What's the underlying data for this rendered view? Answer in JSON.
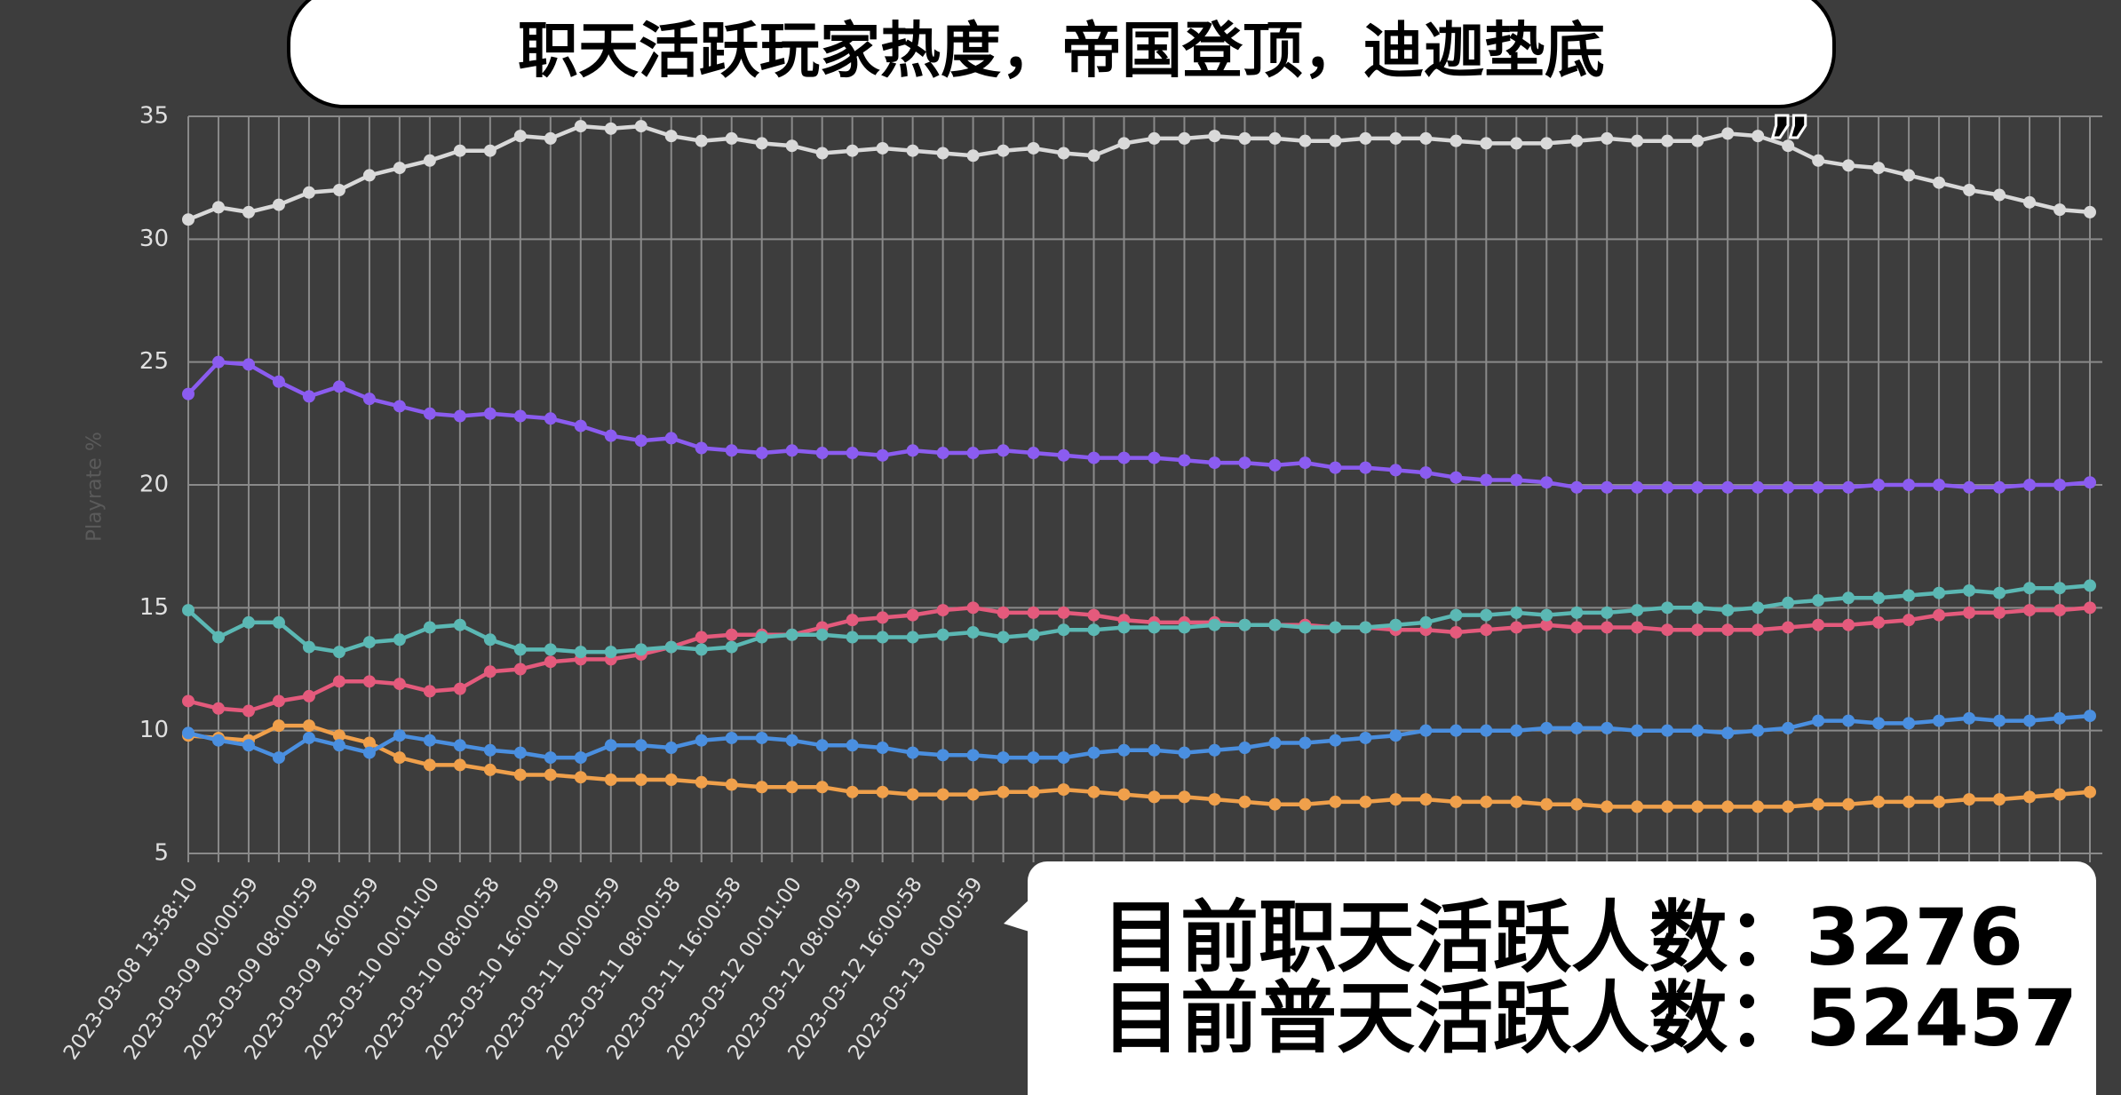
{
  "chart_data": {
    "type": "line",
    "title": "职天活跃玩家热度，帝国登顶，迪迦垫底",
    "quote_open": "“",
    "quote_close": "„",
    "y_label": "Playrate %",
    "categories": [
      "2023-03-08 13:58:10",
      null,
      "2023-03-09 00:00:59",
      null,
      "2023-03-09 08:00:59",
      null,
      "2023-03-09 16:00:59",
      null,
      "2023-03-10 00:01:00",
      null,
      "2023-03-10 08:00:58",
      null,
      "2023-03-10 16:00:59",
      null,
      "2023-03-11 00:00:59",
      null,
      "2023-03-11 08:00:58",
      null,
      "2023-03-11 16:00:58",
      null,
      "2023-03-12 00:01:00",
      null,
      "2023-03-12 08:00:59",
      null,
      "2023-03-12 16:00:58",
      null,
      "2023-03-13 00:00:59",
      null,
      null,
      null,
      null,
      null,
      null,
      null,
      null,
      null,
      null,
      null,
      null,
      null,
      null,
      null,
      null,
      null,
      null,
      null,
      null,
      null,
      null,
      null,
      null,
      null,
      null,
      null,
      null,
      null,
      null,
      null,
      null,
      null,
      null,
      null,
      null,
      null
    ],
    "series": [
      {
        "color": "#d9d9d9",
        "values": [
          30.8,
          31.3,
          31.1,
          31.4,
          31.9,
          32.0,
          32.6,
          32.9,
          33.2,
          33.6,
          33.6,
          34.2,
          34.1,
          34.6,
          34.5,
          34.6,
          34.2,
          34.0,
          34.1,
          33.9,
          33.8,
          33.5,
          33.6,
          33.7,
          33.6,
          33.5,
          33.4,
          33.6,
          33.7,
          33.5,
          33.4,
          33.9,
          34.1,
          34.1,
          34.2,
          34.1,
          34.1,
          34.0,
          34.0,
          34.1,
          34.1,
          34.1,
          34.0,
          33.9,
          33.9,
          33.9,
          34.0,
          34.1,
          34.0,
          34.0,
          34.0,
          34.3,
          34.2,
          33.8,
          33.2,
          33.0,
          32.9,
          32.6,
          32.3,
          32.0,
          31.8,
          31.5,
          31.2,
          31.1
        ]
      },
      {
        "color": "#8b5cf0",
        "values": [
          23.7,
          25.0,
          24.9,
          24.2,
          23.6,
          24.0,
          23.5,
          23.2,
          22.9,
          22.8,
          22.9,
          22.8,
          22.7,
          22.4,
          22.0,
          21.8,
          21.9,
          21.5,
          21.4,
          21.3,
          21.4,
          21.3,
          21.3,
          21.2,
          21.4,
          21.3,
          21.3,
          21.4,
          21.3,
          21.2,
          21.1,
          21.1,
          21.1,
          21.0,
          20.9,
          20.9,
          20.8,
          20.9,
          20.7,
          20.7,
          20.6,
          20.5,
          20.3,
          20.2,
          20.2,
          20.1,
          19.9,
          19.9,
          19.9,
          19.9,
          19.9,
          19.9,
          19.9,
          19.9,
          19.9,
          19.9,
          20.0,
          20.0,
          20.0,
          19.9,
          19.9,
          20.0,
          20.0,
          20.1
        ]
      },
      {
        "color": "#5bb8b4",
        "values": [
          14.9,
          13.8,
          14.4,
          14.4,
          13.4,
          13.2,
          13.6,
          13.7,
          14.2,
          14.3,
          13.7,
          13.3,
          13.3,
          13.2,
          13.2,
          13.3,
          13.4,
          13.3,
          13.4,
          13.8,
          13.9,
          13.9,
          13.8,
          13.8,
          13.8,
          13.9,
          14.0,
          13.8,
          13.9,
          14.1,
          14.1,
          14.2,
          14.2,
          14.2,
          14.3,
          14.3,
          14.3,
          14.2,
          14.2,
          14.2,
          14.3,
          14.4,
          14.7,
          14.7,
          14.8,
          14.7,
          14.8,
          14.8,
          14.9,
          15.0,
          15.0,
          14.9,
          15.0,
          15.2,
          15.3,
          15.4,
          15.4,
          15.5,
          15.6,
          15.7,
          15.6,
          15.8,
          15.8,
          15.9
        ]
      },
      {
        "color": "#e45a7c",
        "values": [
          11.2,
          10.9,
          10.8,
          11.2,
          11.4,
          12.0,
          12.0,
          11.9,
          11.6,
          11.7,
          12.4,
          12.5,
          12.8,
          12.9,
          12.9,
          13.1,
          13.4,
          13.8,
          13.9,
          13.9,
          13.9,
          14.2,
          14.5,
          14.6,
          14.7,
          14.9,
          15.0,
          14.8,
          14.8,
          14.8,
          14.7,
          14.5,
          14.4,
          14.4,
          14.4,
          14.3,
          14.3,
          14.3,
          14.2,
          14.2,
          14.1,
          14.1,
          14.0,
          14.1,
          14.2,
          14.3,
          14.2,
          14.2,
          14.2,
          14.1,
          14.1,
          14.1,
          14.1,
          14.2,
          14.3,
          14.3,
          14.4,
          14.5,
          14.7,
          14.8,
          14.8,
          14.9,
          14.9,
          15.0
        ]
      },
      {
        "color": "#4a8fe0",
        "values": [
          9.9,
          9.6,
          9.4,
          8.9,
          9.7,
          9.4,
          9.1,
          9.8,
          9.6,
          9.4,
          9.2,
          9.1,
          8.9,
          8.9,
          9.4,
          9.4,
          9.3,
          9.6,
          9.7,
          9.7,
          9.6,
          9.4,
          9.4,
          9.3,
          9.1,
          9.0,
          9.0,
          8.9,
          8.9,
          8.9,
          9.1,
          9.2,
          9.2,
          9.1,
          9.2,
          9.3,
          9.5,
          9.5,
          9.6,
          9.7,
          9.8,
          10.0,
          10.0,
          10.0,
          10.0,
          10.1,
          10.1,
          10.1,
          10.0,
          10.0,
          10.0,
          9.9,
          10.0,
          10.1,
          10.4,
          10.4,
          10.3,
          10.3,
          10.4,
          10.5,
          10.4,
          10.4,
          10.5,
          10.6
        ]
      },
      {
        "color": "#f0a04b",
        "values": [
          9.8,
          9.7,
          9.6,
          10.2,
          10.2,
          9.8,
          9.5,
          8.9,
          8.6,
          8.6,
          8.4,
          8.2,
          8.2,
          8.1,
          8.0,
          8.0,
          8.0,
          7.9,
          7.8,
          7.7,
          7.7,
          7.7,
          7.5,
          7.5,
          7.4,
          7.4,
          7.4,
          7.5,
          7.5,
          7.6,
          7.5,
          7.4,
          7.3,
          7.3,
          7.2,
          7.1,
          7.0,
          7.0,
          7.1,
          7.1,
          7.2,
          7.2,
          7.1,
          7.1,
          7.1,
          7.0,
          7.0,
          6.9,
          6.9,
          6.9,
          6.9,
          6.9,
          6.9,
          6.9,
          7.0,
          7.0,
          7.1,
          7.1,
          7.1,
          7.2,
          7.2,
          7.3,
          7.4,
          7.5
        ]
      }
    ],
    "ylim": [
      5,
      35
    ],
    "yticks": [
      5,
      10,
      15,
      20,
      25,
      30,
      35
    ],
    "grid": true,
    "annotations": [
      "目前职天活跃人数：3276",
      "目前普天活跃人数：52457"
    ]
  }
}
